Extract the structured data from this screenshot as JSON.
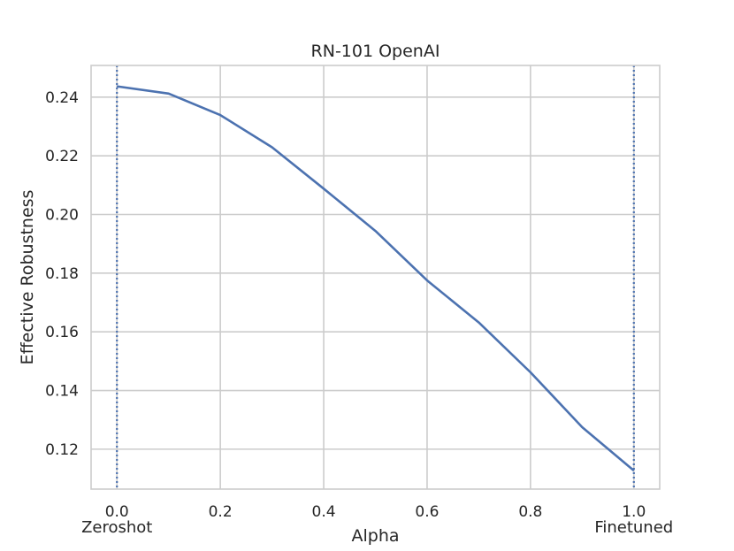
{
  "chart_data": {
    "type": "line",
    "title": "RN-101 OpenAI",
    "xlabel": "Alpha",
    "ylabel": "Effective Robustness",
    "xlim": [
      -0.05,
      1.05
    ],
    "ylim": [
      0.1064,
      0.2508
    ],
    "xticks": [
      0.0,
      0.2,
      0.4,
      0.6,
      0.8,
      1.0
    ],
    "xtick_labels": [
      "0.0",
      "0.2",
      "0.4",
      "0.6",
      "0.8",
      "1.0"
    ],
    "yticks": [
      0.12,
      0.14,
      0.16,
      0.18,
      0.2,
      0.22,
      0.24
    ],
    "ytick_labels": [
      "0.12",
      "0.14",
      "0.16",
      "0.18",
      "0.20",
      "0.22",
      "0.24"
    ],
    "grid": true,
    "series": [
      {
        "x": [
          0.0,
          0.1,
          0.2,
          0.3,
          0.4,
          0.5,
          0.6,
          0.7,
          0.8,
          0.9,
          1.0
        ],
        "values": [
          0.2437,
          0.2412,
          0.2339,
          0.2229,
          0.2088,
          0.1944,
          0.1775,
          0.1632,
          0.1462,
          0.1275,
          0.1127
        ],
        "color": "#4c72b0"
      }
    ],
    "vlines": [
      {
        "x": 0.0,
        "label": "Zeroshot",
        "style": "dotted",
        "color": "#4c72b0"
      },
      {
        "x": 1.0,
        "label": "Finetuned",
        "style": "dotted",
        "color": "#4c72b0"
      }
    ]
  }
}
